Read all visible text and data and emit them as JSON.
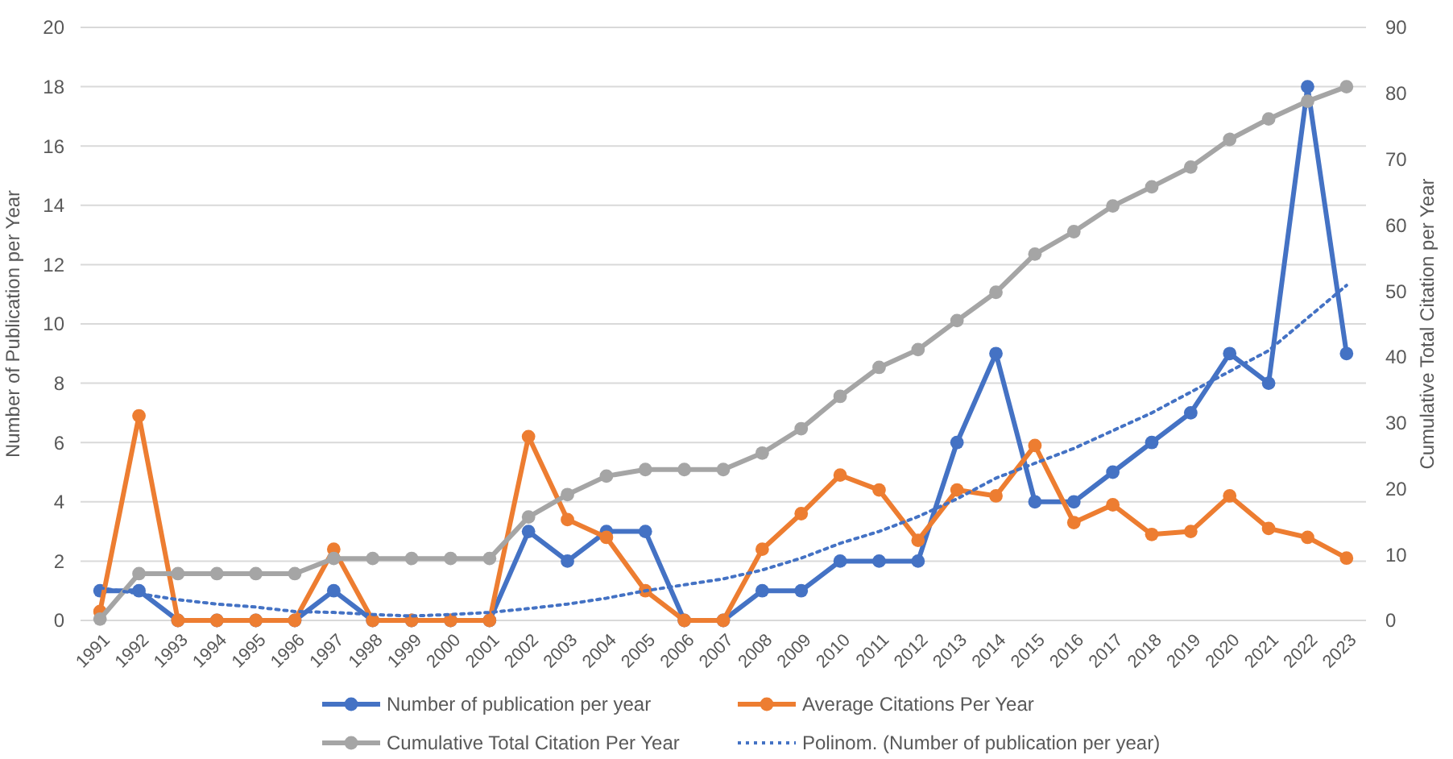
{
  "chart_data": {
    "type": "line",
    "xlabel": null,
    "ylabel": "Number of  Publication per Year",
    "y2label": "Cumulative Total Citation per Year",
    "categories": [
      "1991",
      "1992",
      "1993",
      "1994",
      "1995",
      "1996",
      "1997",
      "1998",
      "1999",
      "2000",
      "2001",
      "2002",
      "2003",
      "2004",
      "2005",
      "2006",
      "2007",
      "2008",
      "2009",
      "2010",
      "2011",
      "2012",
      "2013",
      "2014",
      "2015",
      "2016",
      "2017",
      "2018",
      "2019",
      "2020",
      "2021",
      "2022",
      "2023"
    ],
    "ylim": [
      0,
      20
    ],
    "yticks": [
      0,
      2,
      4,
      6,
      8,
      10,
      12,
      14,
      16,
      18,
      20
    ],
    "y2lim": [
      0,
      90
    ],
    "y2ticks": [
      0,
      10,
      20,
      30,
      40,
      50,
      60,
      70,
      80,
      90
    ],
    "grid": "y",
    "legend": "bottom",
    "marker": "circle",
    "line_style": "solid",
    "series": [
      {
        "name": "Number of publication per year",
        "color": "#4472c4",
        "values": [
          1,
          1,
          0,
          0,
          0,
          0,
          1,
          0,
          0,
          0,
          0,
          3,
          2,
          3,
          3,
          0,
          0,
          1,
          1,
          2,
          2,
          2,
          6,
          9,
          4,
          4,
          5,
          6,
          7,
          9,
          8,
          18,
          9
        ]
      },
      {
        "name": "Average Citations Per Year",
        "color": "#ed7d31",
        "values": [
          0.3,
          6.9,
          0,
          0,
          0,
          0,
          2.4,
          0,
          0,
          0,
          0,
          6.2,
          3.4,
          2.8,
          1,
          0,
          0,
          2.4,
          3.6,
          4.9,
          4.4,
          2.7,
          4.4,
          4.2,
          5.9,
          3.3,
          3.9,
          2.9,
          3,
          4.2,
          3.1,
          2.8,
          2.1
        ]
      },
      {
        "name": "Cumulative Total Citation Per Year",
        "color": "#a5a5a5",
        "axis": "y2",
        "values": [
          0.2,
          7.1,
          7.1,
          7.1,
          7.1,
          7.1,
          9.4,
          9.4,
          9.4,
          9.4,
          9.4,
          15.7,
          19.1,
          21.9,
          22.9,
          22.9,
          22.9,
          25.4,
          29.1,
          34,
          38.4,
          41.1,
          45.5,
          49.8,
          55.6,
          59,
          62.9,
          65.8,
          68.8,
          73,
          76.1,
          78.8,
          81
        ]
      },
      {
        "name": "Polinom. (Number of publication per year)",
        "color": "#4472c4",
        "marker": "none",
        "line_style": "dotted",
        "values": [
          1.1,
          0.9,
          0.7,
          0.55,
          0.45,
          0.3,
          0.27,
          0.2,
          0.15,
          0.2,
          0.27,
          0.4,
          0.55,
          0.75,
          1,
          1.2,
          1.4,
          1.7,
          2.1,
          2.6,
          3,
          3.5,
          4.1,
          4.8,
          5.3,
          5.8,
          6.4,
          7,
          7.7,
          8.4,
          9.1,
          10.2,
          11.3
        ]
      }
    ]
  }
}
